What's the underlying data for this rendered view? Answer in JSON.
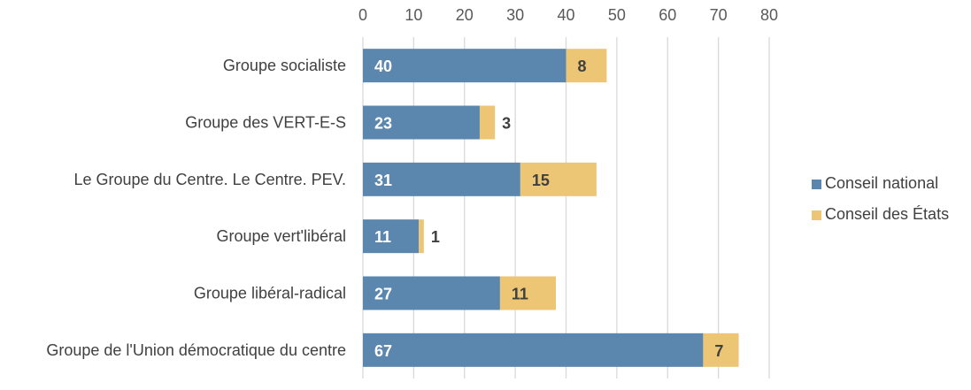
{
  "chart_data": {
    "type": "bar",
    "orientation": "horizontal",
    "stacked": true,
    "title": "",
    "xlabel": "",
    "ylabel": "",
    "xlim": [
      0,
      80
    ],
    "x_ticks": [
      0,
      10,
      20,
      30,
      40,
      50,
      60,
      70,
      80
    ],
    "x_axis_position": "top",
    "grid": true,
    "legend_position": "right",
    "categories": [
      "Groupe socialiste",
      "Groupe des VERT-E-S",
      "Le Groupe du Centre. Le Centre. PEV.",
      "Groupe vert'libéral",
      "Groupe libéral-radical",
      "Groupe de l'Union démocratique du centre"
    ],
    "series": [
      {
        "name": "Conseil national",
        "color": "#5b87ae",
        "label_color": "#ffffff",
        "values": [
          40,
          23,
          31,
          11,
          27,
          67
        ]
      },
      {
        "name": "Conseil des États",
        "color": "#ecc675",
        "label_color": "#404040",
        "values": [
          8,
          3,
          15,
          1,
          11,
          7
        ]
      }
    ]
  }
}
